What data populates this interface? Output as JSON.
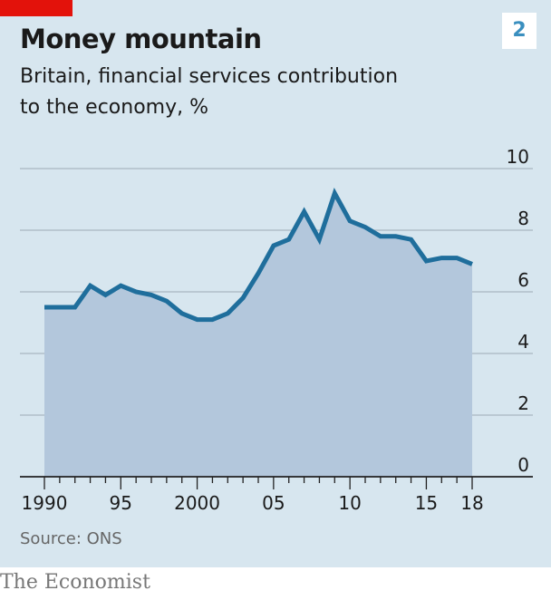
{
  "badge": "2",
  "source": "Source: ONS",
  "publisher": "The Economist",
  "chart_data": {
    "type": "area",
    "title": "Money mountain",
    "subtitle_lines": [
      "Britain, financial services contribution",
      "to the economy, %"
    ],
    "x": [
      1990,
      1991,
      1992,
      1993,
      1994,
      1995,
      1996,
      1997,
      1998,
      1999,
      2000,
      2001,
      2002,
      2003,
      2004,
      2005,
      2006,
      2007,
      2008,
      2009,
      2010,
      2011,
      2012,
      2013,
      2014,
      2015,
      2016,
      2017,
      2018
    ],
    "series": [
      {
        "values": [
          5.5,
          5.5,
          5.5,
          6.2,
          5.9,
          6.2,
          6.0,
          5.9,
          5.7,
          5.3,
          5.1,
          5.1,
          5.3,
          5.8,
          6.6,
          7.5,
          7.7,
          8.6,
          7.7,
          9.2,
          8.3,
          8.1,
          7.8,
          7.8,
          7.7,
          7.0,
          7.1,
          7.1,
          6.9
        ]
      }
    ],
    "xlim": [
      1990,
      2018
    ],
    "ylim": [
      0,
      10
    ],
    "x_ticks": [
      {
        "value": 1990,
        "label": "1990"
      },
      {
        "value": 1995,
        "label": "95"
      },
      {
        "value": 2000,
        "label": "2000"
      },
      {
        "value": 2005,
        "label": "05"
      },
      {
        "value": 2010,
        "label": "10"
      },
      {
        "value": 2015,
        "label": "15"
      },
      {
        "value": 2018,
        "label": "18"
      }
    ],
    "y_ticks": [
      0,
      2,
      4,
      6,
      8,
      10
    ],
    "y_axis_side": "right",
    "grid": true,
    "colors": {
      "line": "#1f6e9c",
      "fill": "#b3c7dc",
      "grid": "#a9b7c1",
      "axis": "#222222"
    }
  }
}
